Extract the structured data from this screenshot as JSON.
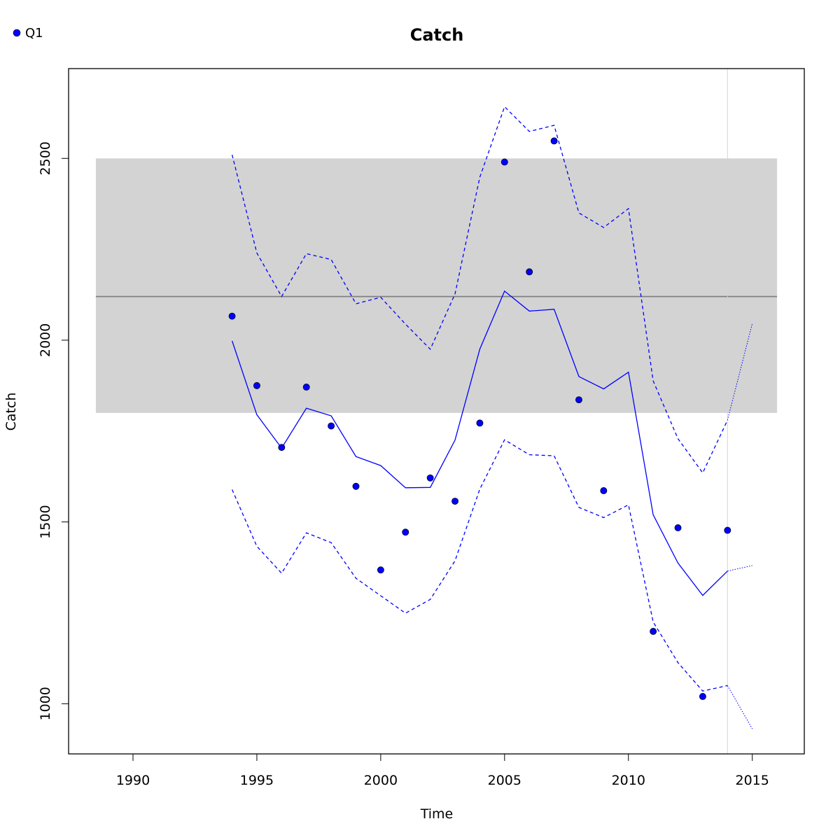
{
  "chart_data": {
    "type": "line",
    "title": "Catch",
    "xlabel": "Time",
    "ylabel": "Catch",
    "xlim": [
      1987.4,
      2017.1
    ],
    "ylim": [
      862,
      2747
    ],
    "x_ticks": [
      1990,
      1995,
      2000,
      2005,
      2010,
      2015
    ],
    "y_ticks": [
      1000,
      1500,
      2000,
      2500
    ],
    "grid": false,
    "legend": {
      "position": "top-left",
      "entries": [
        "Q1"
      ]
    },
    "reference_band": {
      "x_range": [
        1988.5,
        2016
      ],
      "y_range": [
        1800,
        2500
      ],
      "color": "#d3d3d3"
    },
    "reference_line": {
      "y": 2120,
      "x_range": [
        1988.5,
        2016
      ],
      "color": "#808080"
    },
    "vertical_line": {
      "x": 2014,
      "color": "#d3d3d3"
    },
    "series": [
      {
        "name": "Q1",
        "role": "observed points",
        "color": "#0000ff",
        "x": [
          1994,
          1995,
          1996,
          1997,
          1998,
          1999,
          2000,
          2001,
          2002,
          2003,
          2004,
          2005,
          2006,
          2007,
          2008,
          2009,
          2010,
          2011,
          2012,
          2013,
          2014
        ],
        "y": [
          2066,
          1875,
          1705,
          1871,
          1764,
          1598,
          1368,
          1472,
          1621,
          1557,
          1772,
          2490,
          2188,
          2548,
          1836,
          1586,
          null,
          1199,
          1484,
          1020,
          1477
        ]
      },
      {
        "role": "fitted",
        "color": "#0000ff",
        "style": "solid",
        "x": [
          1994,
          1995,
          1996,
          1997,
          1998,
          1999,
          2000,
          2001,
          2002,
          2003,
          2004,
          2005,
          2006,
          2007,
          2008,
          2009,
          2010,
          2011,
          2012,
          2013,
          2014
        ],
        "y": [
          1998,
          1795,
          1703,
          1813,
          1792,
          1680,
          1655,
          1594,
          1595,
          1725,
          1975,
          2135,
          2080,
          2085,
          1900,
          1866,
          1912,
          1520,
          1387,
          1298,
          1365
        ]
      },
      {
        "role": "upper bound",
        "color": "#0000ff",
        "style": "dashed",
        "x": [
          1994,
          1995,
          1996,
          1997,
          1998,
          1999,
          2000,
          2001,
          2002,
          2003,
          2004,
          2005,
          2006,
          2007,
          2008,
          2009,
          2010,
          2011,
          2012,
          2013,
          2014
        ],
        "y": [
          2510,
          2240,
          2120,
          2238,
          2222,
          2100,
          2118,
          2044,
          1975,
          2127,
          2448,
          2642,
          2574,
          2591,
          2350,
          2310,
          2362,
          1888,
          1729,
          1635,
          1780
        ]
      },
      {
        "role": "lower bound",
        "color": "#0000ff",
        "style": "dashed",
        "x": [
          1994,
          1995,
          1996,
          1997,
          1998,
          1999,
          2000,
          2001,
          2002,
          2003,
          2004,
          2005,
          2006,
          2007,
          2008,
          2009,
          2010,
          2011,
          2012,
          2013,
          2014
        ],
        "y": [
          1589,
          1433,
          1359,
          1470,
          1443,
          1345,
          1297,
          1249,
          1287,
          1393,
          1590,
          1726,
          1685,
          1682,
          1540,
          1512,
          1547,
          1225,
          1113,
          1035,
          1050
        ]
      },
      {
        "role": "projection fitted",
        "color": "#0000ff",
        "style": "dotted",
        "x": [
          2014,
          2015
        ],
        "y": [
          1365,
          1380
        ]
      },
      {
        "role": "projection upper",
        "color": "#0000ff",
        "style": "dotted",
        "x": [
          2014,
          2015
        ],
        "y": [
          1780,
          2046
        ]
      },
      {
        "role": "projection lower",
        "color": "#0000ff",
        "style": "dotted",
        "x": [
          2014,
          2015
        ],
        "y": [
          1050,
          931
        ]
      }
    ]
  }
}
